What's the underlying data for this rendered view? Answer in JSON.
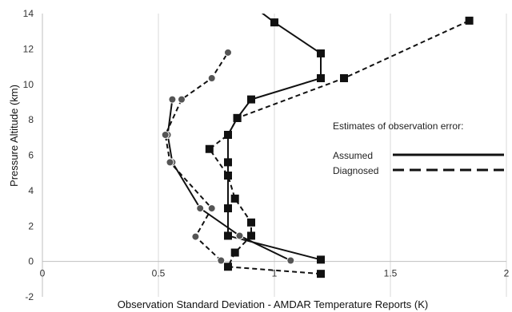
{
  "chart_data": {
    "type": "line",
    "title": "",
    "xlabel": "Observation Standard Deviation - AMDAR Temperature Reports (K)",
    "ylabel": "Pressure Altitude (km)",
    "xlim": [
      0,
      2
    ],
    "ylim": [
      -2,
      14
    ],
    "x_ticks": [
      0,
      0.5,
      1,
      1.5,
      2
    ],
    "x_tick_labels": [
      "0",
      "0.5",
      "1",
      "1.5",
      "2"
    ],
    "y_ticks": [
      -2,
      0,
      2,
      4,
      6,
      8,
      10,
      12,
      14
    ],
    "y_tick_labels": [
      "-2",
      "0",
      "2",
      "4",
      "6",
      "8",
      "10",
      "12",
      "14"
    ],
    "grid": "vertical",
    "legend": {
      "title": "Estimates of observation error:",
      "placement": "right",
      "entries": [
        {
          "label": "Assumed",
          "style": "solid"
        },
        {
          "label": "Diagnosed",
          "style": "dashed"
        }
      ]
    },
    "colors": {
      "line": "#111111",
      "circle_fill": "#555555",
      "grid": "#d9d9d9"
    },
    "series": [
      {
        "style": "solid",
        "marker": "square",
        "points": [
          [
            1.2,
            0.1
          ],
          [
            0.8,
            1.45
          ],
          [
            0.8,
            3.0
          ],
          [
            0.8,
            4.85
          ],
          [
            0.8,
            5.6
          ],
          [
            0.8,
            7.15
          ],
          [
            0.84,
            8.1
          ],
          [
            0.9,
            9.15
          ],
          [
            1.2,
            10.35
          ],
          [
            1.2,
            11.75
          ],
          [
            1.0,
            13.5
          ],
          [
            0.9,
            14.5
          ]
        ]
      },
      {
        "style": "dashed",
        "marker": "square",
        "points": [
          [
            1.2,
            -0.7
          ],
          [
            0.8,
            -0.3
          ],
          [
            0.83,
            0.5
          ],
          [
            0.9,
            1.45
          ],
          [
            0.9,
            2.2
          ],
          [
            0.83,
            3.55
          ],
          [
            0.8,
            4.85
          ],
          [
            0.72,
            6.35
          ],
          [
            0.8,
            7.15
          ],
          [
            0.84,
            8.1
          ],
          [
            1.3,
            10.35
          ],
          [
            1.84,
            13.6
          ]
        ]
      },
      {
        "style": "solid",
        "marker": "circle",
        "points": [
          [
            1.07,
            0.05
          ],
          [
            0.85,
            1.45
          ],
          [
            0.68,
            3.0
          ],
          [
            0.56,
            5.6
          ],
          [
            0.54,
            7.15
          ],
          [
            0.56,
            9.15
          ]
        ]
      },
      {
        "style": "dashed",
        "marker": "circle",
        "points": [
          [
            0.77,
            0.05
          ],
          [
            0.66,
            1.4
          ],
          [
            0.73,
            3.0
          ],
          [
            0.55,
            5.6
          ],
          [
            0.53,
            7.15
          ],
          [
            0.6,
            9.15
          ],
          [
            0.73,
            10.35
          ],
          [
            0.8,
            11.8
          ]
        ]
      }
    ]
  }
}
